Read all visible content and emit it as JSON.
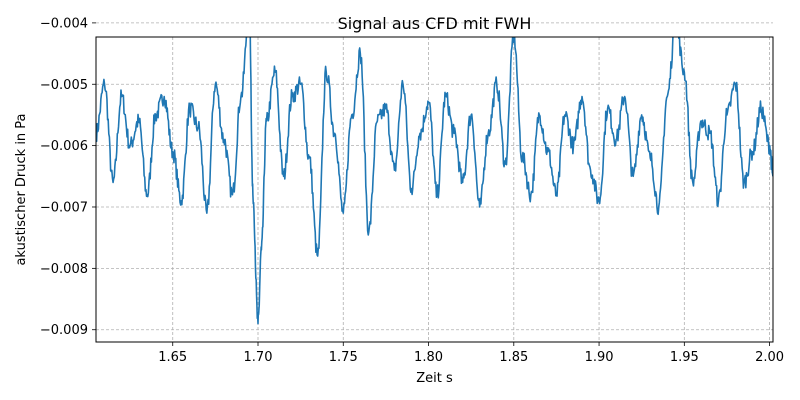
{
  "chart_data": {
    "type": "line",
    "title": "Signal aus CFD mit FWH",
    "xlabel": "Zeit s",
    "ylabel": "akustischer Druck in Pa",
    "xlim": [
      1.605,
      2.002
    ],
    "ylim": [
      -0.0092,
      -0.00423
    ],
    "grid": true,
    "grid_style": "dashed",
    "line_color": "#1f77b4",
    "x_ticks": [
      1.65,
      1.7,
      1.75,
      1.8,
      1.85,
      1.9,
      1.95,
      2.0
    ],
    "x_tick_labels": [
      "1.65",
      "1.70",
      "1.75",
      "1.80",
      "1.85",
      "1.90",
      "1.95",
      "2.00"
    ],
    "y_ticks": [
      -0.004,
      -0.005,
      -0.006,
      -0.007,
      -0.008,
      -0.009
    ],
    "y_tick_labels": [
      "−0.004",
      "−0.005",
      "−0.006",
      "−0.007",
      "−0.008",
      "−0.009"
    ],
    "series": [
      {
        "x": [
          1.605,
          1.61,
          1.615,
          1.62,
          1.625,
          1.63,
          1.635,
          1.64,
          1.645,
          1.65,
          1.655,
          1.66,
          1.665,
          1.67,
          1.675,
          1.68,
          1.685,
          1.69,
          1.695,
          1.697,
          1.7,
          1.702,
          1.705,
          1.71,
          1.715,
          1.72,
          1.725,
          1.73,
          1.735,
          1.74,
          1.745,
          1.75,
          1.755,
          1.76,
          1.765,
          1.77,
          1.775,
          1.78,
          1.785,
          1.79,
          1.795,
          1.8,
          1.805,
          1.81,
          1.815,
          1.82,
          1.825,
          1.83,
          1.835,
          1.84,
          1.845,
          1.85,
          1.855,
          1.86,
          1.865,
          1.87,
          1.875,
          1.88,
          1.885,
          1.89,
          1.895,
          1.9,
          1.905,
          1.91,
          1.915,
          1.92,
          1.925,
          1.93,
          1.935,
          1.94,
          1.945,
          1.95,
          1.955,
          1.96,
          1.965,
          1.97,
          1.975,
          1.98,
          1.985,
          1.99,
          1.995,
          2.0,
          2.002
        ],
        "y": [
          -0.0058,
          -0.005,
          -0.0066,
          -0.0052,
          -0.006,
          -0.0056,
          -0.0068,
          -0.0055,
          -0.0052,
          -0.0061,
          -0.0069,
          -0.0054,
          -0.0057,
          -0.0071,
          -0.005,
          -0.0059,
          -0.0068,
          -0.0052,
          -0.0038,
          -0.0068,
          -0.0089,
          -0.0077,
          -0.0056,
          -0.0048,
          -0.0065,
          -0.0052,
          -0.005,
          -0.0062,
          -0.0078,
          -0.0048,
          -0.0058,
          -0.0071,
          -0.0055,
          -0.0045,
          -0.0074,
          -0.0056,
          -0.0054,
          -0.0064,
          -0.005,
          -0.0067,
          -0.0058,
          -0.0053,
          -0.0068,
          -0.0052,
          -0.0058,
          -0.0066,
          -0.0055,
          -0.007,
          -0.0058,
          -0.005,
          -0.0063,
          -0.0042,
          -0.0062,
          -0.0068,
          -0.0055,
          -0.0061,
          -0.0068,
          -0.0055,
          -0.006,
          -0.0052,
          -0.0064,
          -0.0069,
          -0.0054,
          -0.0059,
          -0.0052,
          -0.0065,
          -0.0055,
          -0.0062,
          -0.007,
          -0.0052,
          -0.004,
          -0.0048,
          -0.0066,
          -0.0056,
          -0.0058,
          -0.0069,
          -0.0055,
          -0.005,
          -0.0066,
          -0.0061,
          -0.0054,
          -0.006,
          -0.0065
        ]
      }
    ]
  }
}
